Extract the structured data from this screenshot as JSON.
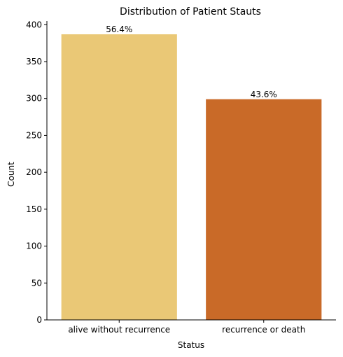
{
  "chart_data": {
    "type": "bar",
    "title": "Distribution of Patient Stauts",
    "xlabel": "Status",
    "ylabel": "Count",
    "categories": [
      "alive without recurrence",
      "recurrence or death"
    ],
    "values": [
      387,
      299
    ],
    "data_labels": [
      "56.4%",
      "43.6%"
    ],
    "colors": [
      "#EAC876",
      "#C96A28"
    ],
    "ylim": [
      0,
      405
    ],
    "yticks": [
      0,
      50,
      100,
      150,
      200,
      250,
      300,
      350,
      400
    ],
    "grid": false,
    "legend": "none"
  }
}
